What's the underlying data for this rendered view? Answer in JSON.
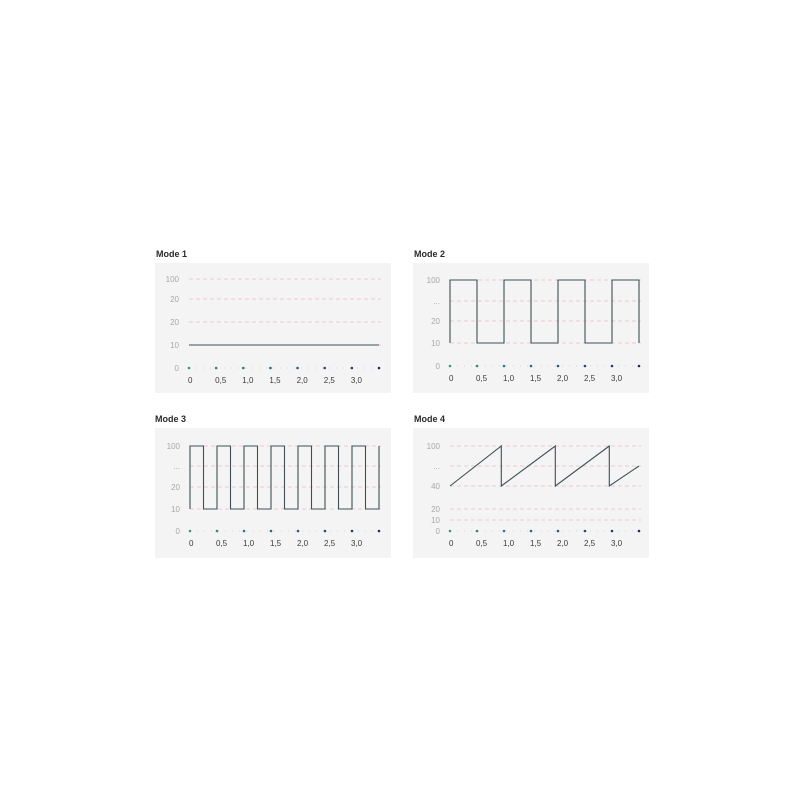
{
  "chart_data": [
    {
      "type": "line",
      "title": "Mode 1",
      "x_ticks": [
        "0",
        "0,5",
        "1,0",
        "1,5",
        "2,0",
        "2,5",
        "3,0"
      ],
      "xlim": [
        0,
        3.5
      ],
      "y_ticks": [
        "100",
        "20",
        "20",
        "10",
        "0"
      ],
      "grid": "horizontal dashed",
      "series": [
        {
          "x": [
            0,
            3.5
          ],
          "y": [
            10,
            10
          ]
        }
      ]
    },
    {
      "type": "line",
      "title": "Mode 2",
      "x_ticks": [
        "0",
        "0,5",
        "1,0",
        "1,5",
        "2,0",
        "2,5",
        "3,0"
      ],
      "xlim": [
        0,
        3.5
      ],
      "y_ticks": [
        "100",
        "...",
        "20",
        "10",
        "0"
      ],
      "grid": "horizontal dashed",
      "series": [
        {
          "x": [
            0,
            0,
            0.5,
            0.5,
            1,
            1,
            1.5,
            1.5,
            2,
            2,
            2.5,
            2.5,
            3,
            3,
            3.5,
            3.5
          ],
          "y": [
            10,
            100,
            100,
            10,
            10,
            100,
            100,
            10,
            10,
            100,
            100,
            10,
            10,
            100,
            100,
            10
          ]
        }
      ]
    },
    {
      "type": "line",
      "title": "Mode 3",
      "x_ticks": [
        "0",
        "0,5",
        "1,0",
        "1,5",
        "2,0",
        "2,5",
        "3,0"
      ],
      "xlim": [
        0,
        3.5
      ],
      "y_ticks": [
        "100",
        "...",
        "20",
        "10",
        "0"
      ],
      "grid": "horizontal dashed",
      "series": [
        {
          "x": [
            0,
            0,
            0.25,
            0.25,
            0.5,
            0.5,
            0.75,
            0.75,
            1,
            1,
            1.25,
            1.25,
            1.5,
            1.5,
            1.75,
            1.75,
            2,
            2,
            2.25,
            2.25,
            2.5,
            2.5,
            2.75,
            2.75,
            3,
            3,
            3.25,
            3.25,
            3.5,
            3.5
          ],
          "y": [
            10,
            100,
            100,
            10,
            10,
            100,
            100,
            10,
            10,
            100,
            100,
            10,
            10,
            100,
            100,
            10,
            10,
            100,
            100,
            10,
            10,
            100,
            100,
            10,
            10,
            100,
            100,
            10,
            10,
            100
          ]
        }
      ]
    },
    {
      "type": "line",
      "title": "Mode 4",
      "x_ticks": [
        "0",
        "0,5",
        "1,0",
        "1,5",
        "2,0",
        "2,5",
        "3,0"
      ],
      "xlim": [
        0,
        3.5
      ],
      "y_ticks": [
        "100",
        "...",
        "40",
        "20",
        "10",
        "0"
      ],
      "grid": "horizontal dashed",
      "series": [
        {
          "x": [
            0,
            0.95,
            0.95,
            1.95,
            1.95,
            2.95,
            2.95,
            3.5
          ],
          "y": [
            40,
            100,
            40,
            100,
            40,
            100,
            40,
            70
          ]
        }
      ]
    }
  ],
  "colors": {
    "line": "#3d4f55",
    "grid": "#e8b8bd",
    "panel_bg": "#f5f4f4",
    "dots": [
      "#2f9a7a",
      "#2a8a7c",
      "#2a7a7c",
      "#2a6a7a",
      "#2a5a78",
      "#2a4a74",
      "#2a3a6e",
      "#1e2a5a"
    ]
  }
}
